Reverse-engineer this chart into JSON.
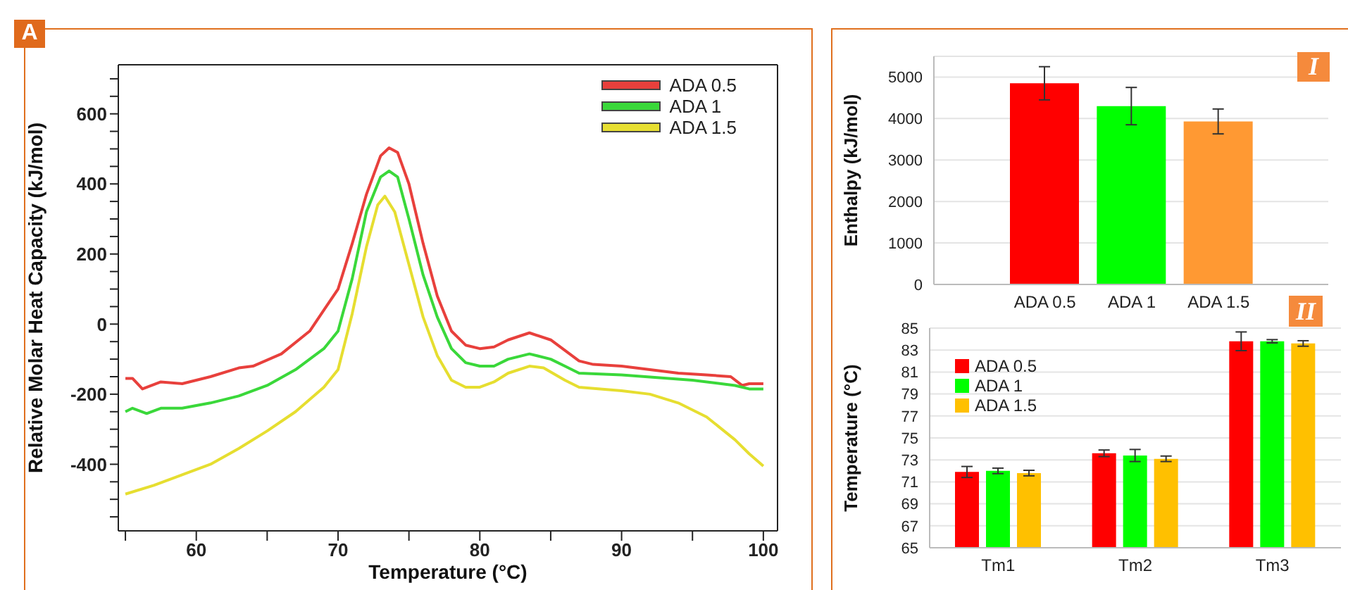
{
  "chart_data": [
    {
      "type": "line",
      "annotations": [
        "A"
      ],
      "xlabel": "Temperature (°C)",
      "ylabel": "Relative Molar Heat Capacity (kJ/mol)",
      "xlim": [
        54.5,
        101
      ],
      "ylim": [
        -590,
        740
      ],
      "xticks": [
        {
          "value": 55,
          "label": null
        },
        60,
        {
          "value": 65,
          "label": null
        },
        70,
        {
          "value": 75,
          "label": null
        },
        80,
        {
          "value": 85,
          "label": null
        },
        90,
        {
          "value": 95,
          "label": null
        },
        100
      ],
      "yticks": [
        {
          "value": -550,
          "label": null
        },
        {
          "value": -500,
          "label": null
        },
        {
          "value": -450,
          "label": null
        },
        -400,
        {
          "value": -350,
          "label": null
        },
        {
          "value": -300,
          "label": null
        },
        {
          "value": -250,
          "label": null
        },
        -200,
        {
          "value": -150,
          "label": null
        },
        {
          "value": -100,
          "label": null
        },
        {
          "value": -50,
          "label": null
        },
        0,
        {
          "value": 50,
          "label": null
        },
        {
          "value": 100,
          "label": null
        },
        {
          "value": 150,
          "label": null
        },
        200,
        {
          "value": 250,
          "label": null
        },
        {
          "value": 300,
          "label": null
        },
        {
          "value": 350,
          "label": null
        },
        400,
        {
          "value": 450,
          "label": null
        },
        {
          "value": 500,
          "label": null
        },
        {
          "value": 550,
          "label": null
        },
        600,
        {
          "value": 650,
          "label": null
        },
        {
          "value": 700,
          "label": null
        }
      ],
      "legend": "top right",
      "series": [
        {
          "name": "ADA 0.5",
          "color": "#e8403c",
          "x": [
            55,
            55.5,
            56.2,
            57.5,
            59,
            61,
            63,
            64,
            66,
            68,
            69,
            70,
            71,
            72,
            73,
            73.6,
            74.2,
            75,
            76,
            77,
            78,
            79,
            80,
            81,
            82,
            83.5,
            85,
            86,
            87,
            88,
            90,
            92,
            94,
            96,
            97.7,
            98.5,
            99,
            100
          ],
          "values": [
            -155,
            -155,
            -185,
            -165,
            -170,
            -150,
            -125,
            -120,
            -85,
            -20,
            40,
            100,
            230,
            370,
            480,
            503,
            490,
            400,
            230,
            80,
            -20,
            -60,
            -70,
            -65,
            -45,
            -25,
            -45,
            -75,
            -105,
            -115,
            -120,
            -130,
            -140,
            -145,
            -150,
            -175,
            -170,
            -170
          ]
        },
        {
          "name": "ADA 1",
          "color": "#3ad83a",
          "x": [
            55,
            55.5,
            56.5,
            57.5,
            59,
            61,
            63,
            65,
            67,
            69,
            70,
            71,
            72,
            73,
            73.6,
            74.2,
            75,
            76,
            77,
            78,
            79,
            80,
            81,
            82,
            83.5,
            85,
            86,
            87,
            90,
            95,
            98,
            99,
            100
          ],
          "values": [
            -250,
            -240,
            -255,
            -240,
            -240,
            -225,
            -205,
            -175,
            -130,
            -70,
            -20,
            130,
            320,
            420,
            437,
            420,
            300,
            140,
            20,
            -70,
            -110,
            -120,
            -120,
            -100,
            -85,
            -100,
            -120,
            -140,
            -145,
            -160,
            -175,
            -185,
            -185
          ]
        },
        {
          "name": "ADA 1.5",
          "color": "#e6de30",
          "x": [
            55,
            57,
            59,
            61,
            63,
            65,
            67,
            69,
            70,
            71,
            72,
            72.8,
            73.3,
            74,
            75,
            76,
            77,
            78,
            79,
            80,
            81,
            82,
            83.5,
            84.5,
            86,
            87,
            90,
            92,
            94,
            96,
            98,
            99,
            100
          ],
          "values": [
            -485,
            -460,
            -430,
            -400,
            -355,
            -305,
            -250,
            -180,
            -130,
            30,
            220,
            340,
            365,
            320,
            170,
            20,
            -90,
            -160,
            -180,
            -180,
            -165,
            -140,
            -120,
            -125,
            -160,
            -180,
            -190,
            -200,
            -225,
            -265,
            -330,
            -370,
            -405
          ]
        }
      ]
    },
    {
      "type": "bar",
      "annotations": [
        "I"
      ],
      "ylabel": "Enthalpy (kJ/mol)",
      "categories": [
        "ADA 0.5",
        "ADA 1",
        "ADA 1.5"
      ],
      "values": [
        4850,
        4300,
        3930
      ],
      "errors": [
        400,
        450,
        300
      ],
      "colors": [
        "#ff0000",
        "#00ff00",
        "#ff9933"
      ],
      "ylim": [
        0,
        5500
      ],
      "yticks": [
        0,
        1000,
        2000,
        3000,
        4000,
        5000
      ],
      "grid": "y"
    },
    {
      "type": "bar",
      "annotations": [
        "II"
      ],
      "ylabel": "Temperature (°C)",
      "categories": [
        "Tm1",
        "Tm2",
        "Tm3"
      ],
      "ylim": [
        65,
        85
      ],
      "yticks": [
        65,
        67,
        69,
        71,
        73,
        75,
        77,
        79,
        81,
        83,
        85
      ],
      "grid": "y",
      "legend": "top left",
      "series": [
        {
          "name": "ADA 0.5",
          "color": "#ff0000",
          "values": [
            71.9,
            73.6,
            83.8
          ],
          "errors": [
            0.5,
            0.3,
            0.85
          ]
        },
        {
          "name": "ADA 1",
          "color": "#00ff00",
          "values": [
            72.0,
            73.4,
            83.8
          ],
          "errors": [
            0.25,
            0.55,
            0.15
          ]
        },
        {
          "name": "ADA 1.5",
          "color": "#ffc000",
          "values": [
            71.8,
            73.1,
            83.6
          ],
          "errors": [
            0.25,
            0.25,
            0.25
          ]
        }
      ]
    }
  ]
}
